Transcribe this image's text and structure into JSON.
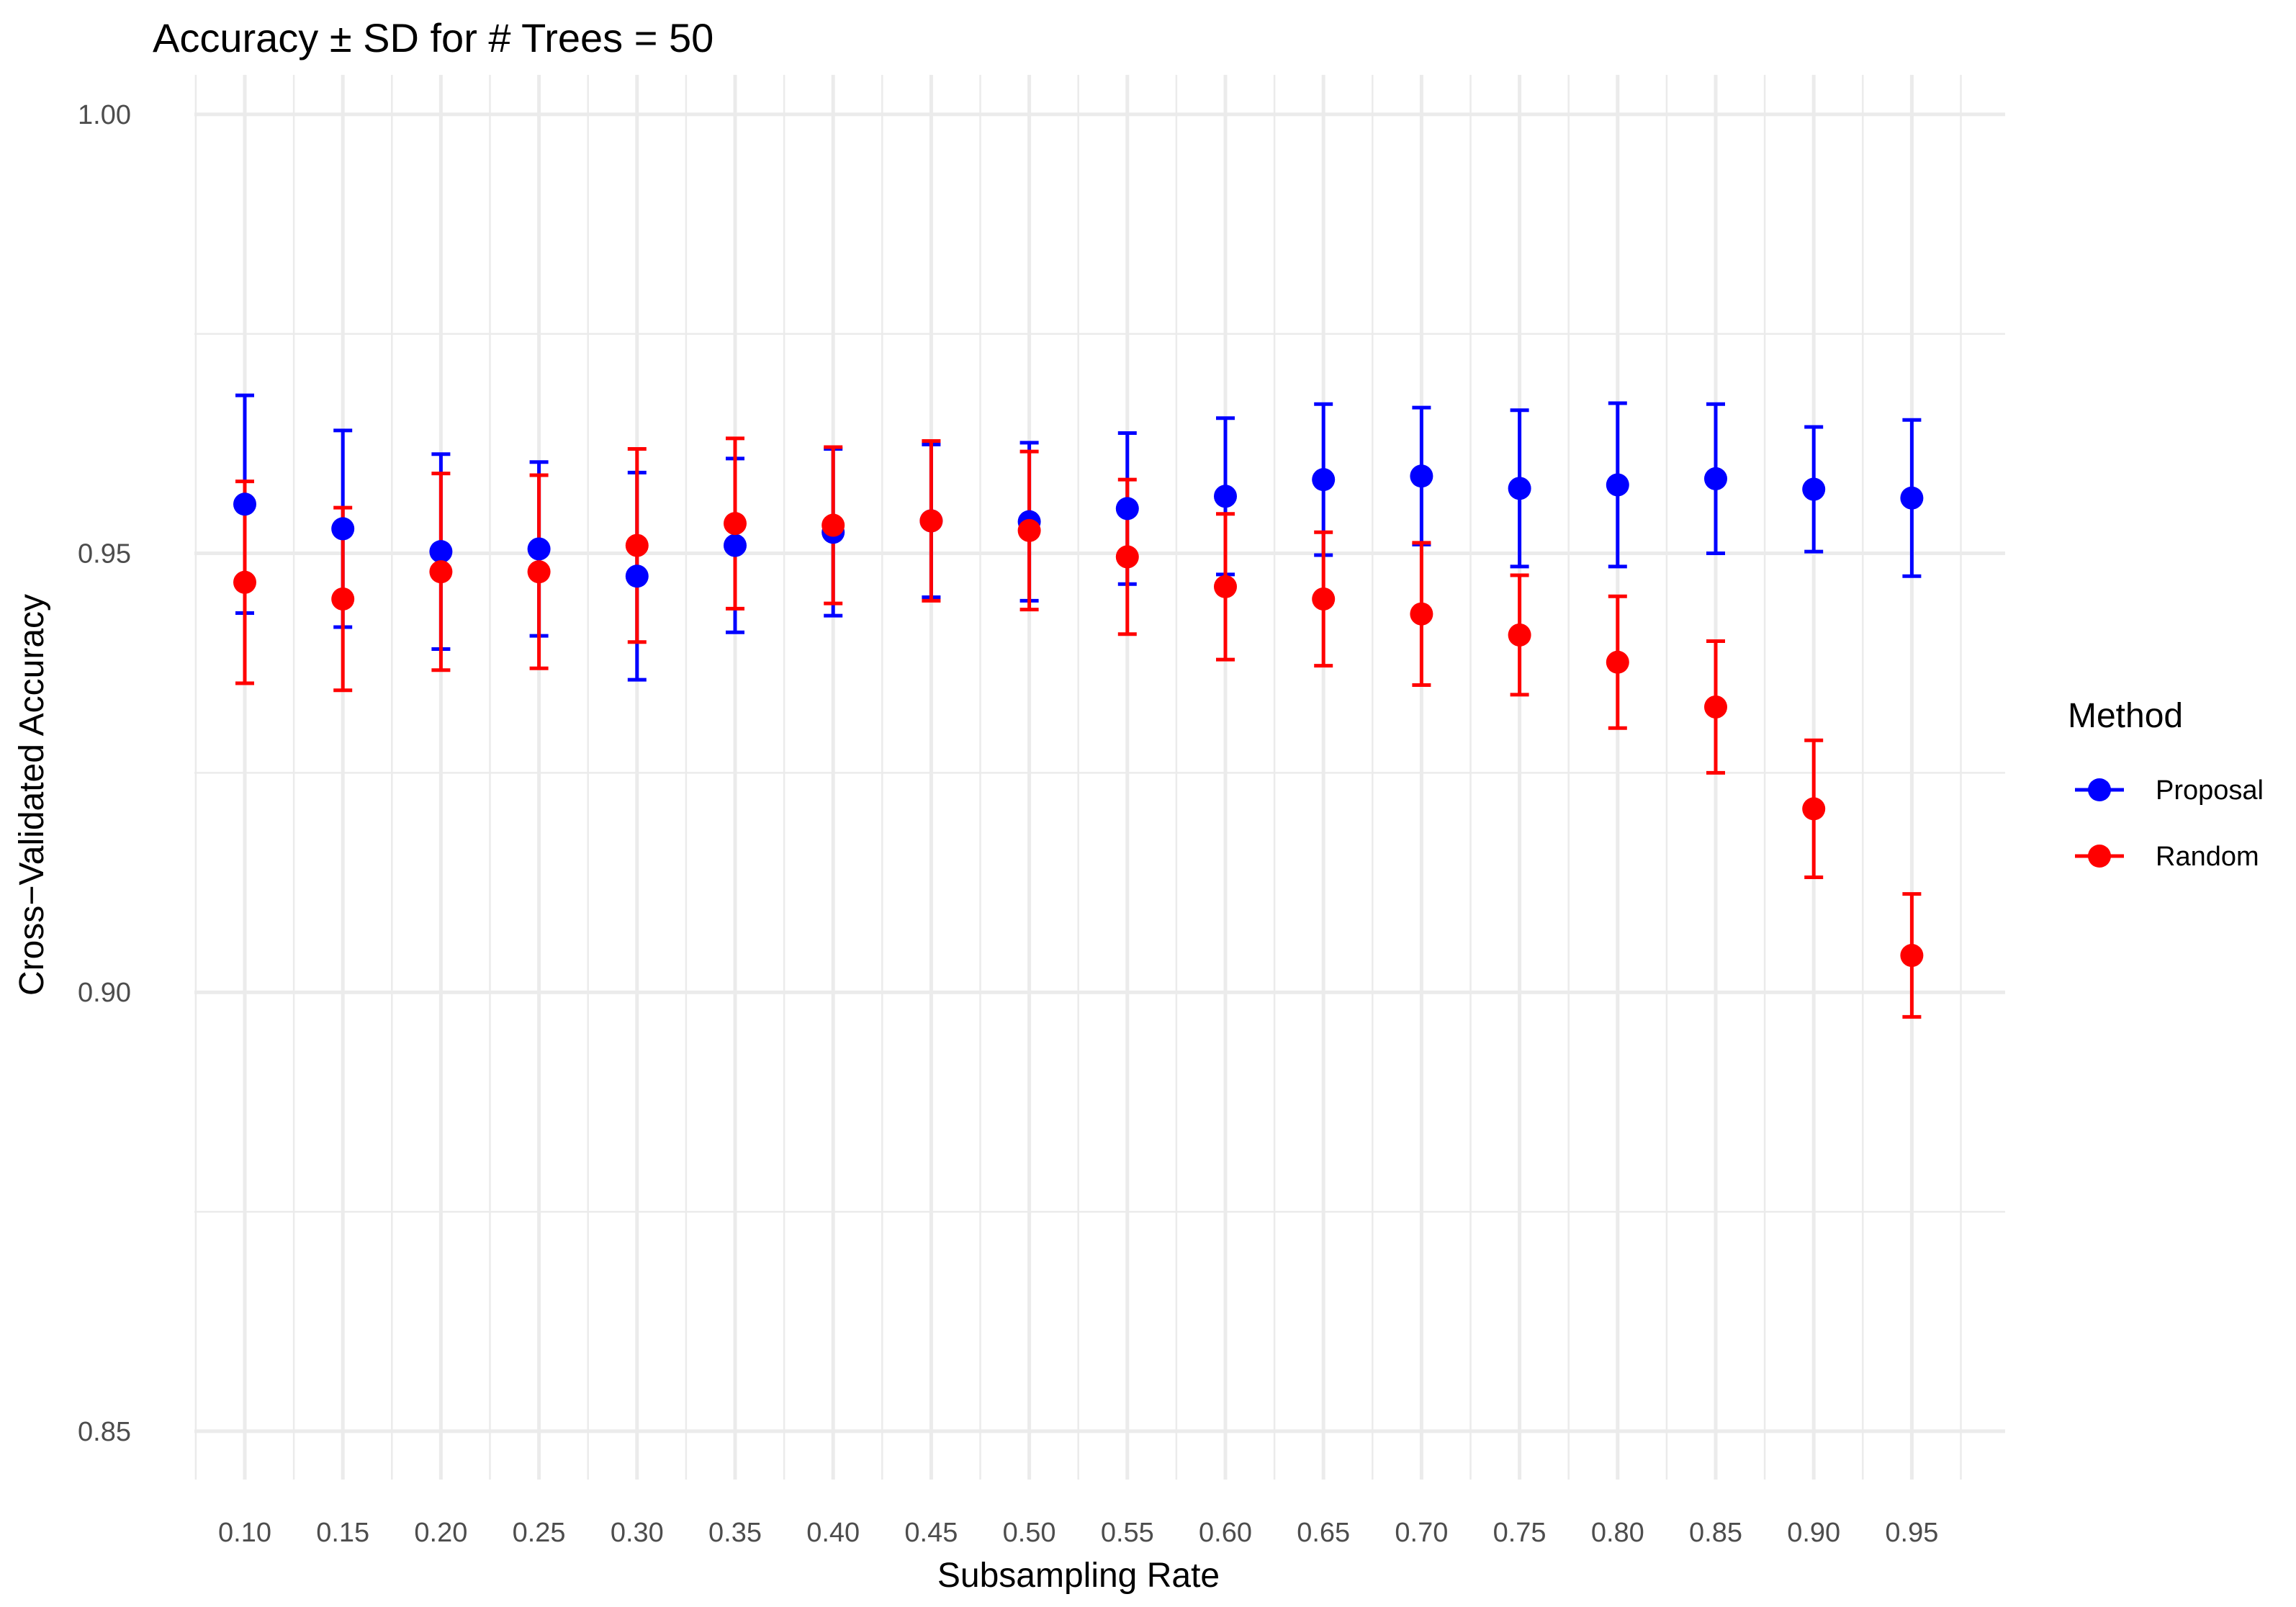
{
  "chart_data": {
    "type": "scatter",
    "title": "Accuracy ± SD for # Trees = 50",
    "xlabel": "Subsampling Rate",
    "ylabel": "Cross−Validated Accuracy",
    "categories": [
      "0.10",
      "0.15",
      "0.20",
      "0.25",
      "0.30",
      "0.35",
      "0.40",
      "0.45",
      "0.50",
      "0.55",
      "0.60",
      "0.65",
      "0.70",
      "0.75",
      "0.80",
      "0.85",
      "0.90",
      "0.95"
    ],
    "ylim": [
      0.8445,
      1.0045
    ],
    "yticks": [
      0.85,
      0.9,
      0.95,
      1.0
    ],
    "ytick_labels": [
      "0.85",
      "0.90",
      "0.95",
      "1.00"
    ],
    "grid": true,
    "legend": {
      "title": "Method",
      "position": "right"
    },
    "series": [
      {
        "name": "Proposal",
        "color": "#0000ff",
        "values": [
          0.9556,
          0.9528,
          0.9502,
          0.9505,
          0.9474,
          0.9509,
          0.9524,
          0.9537,
          0.9536,
          0.9551,
          0.9565,
          0.9584,
          0.9588,
          0.9574,
          0.9578,
          0.9585,
          0.9573,
          0.9563
        ],
        "sd": [
          0.0124,
          0.0112,
          0.0111,
          0.0099,
          0.0118,
          0.0099,
          0.0095,
          0.0087,
          0.009,
          0.0086,
          0.0089,
          0.0086,
          0.0078,
          0.0089,
          0.0093,
          0.0085,
          0.0071,
          0.0089
        ]
      },
      {
        "name": "Random",
        "color": "#ff0000",
        "values": [
          0.9467,
          0.9448,
          0.9479,
          0.9479,
          0.9509,
          0.9534,
          0.9532,
          0.9537,
          0.9526,
          0.9496,
          0.9462,
          0.9448,
          0.9431,
          0.9407,
          0.9376,
          0.9325,
          0.9209,
          0.9042
        ],
        "sd": [
          0.0115,
          0.0104,
          0.0112,
          0.011,
          0.011,
          0.0097,
          0.0089,
          0.0091,
          0.009,
          0.0088,
          0.0083,
          0.0076,
          0.0081,
          0.0068,
          0.0075,
          0.0075,
          0.0078,
          0.007
        ]
      }
    ]
  }
}
